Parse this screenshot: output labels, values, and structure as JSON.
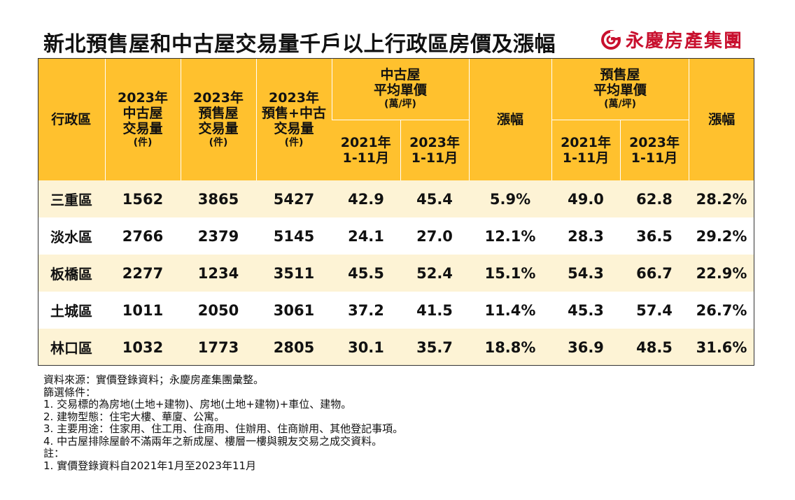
{
  "title": "新北預售屋和中古屋交易量千戶以上行政區房價及漲幅",
  "brand": {
    "name": "永慶房產集團",
    "color": "#c8102e"
  },
  "colors": {
    "header_bg": "#ffc12e",
    "row_alt": "#fdf3d5"
  },
  "chart_data": {
    "type": "table",
    "headers": {
      "district": "行政區",
      "col_2023_used": [
        "2023年",
        "中古屋",
        "交易量"
      ],
      "col_2023_presale": [
        "2023年",
        "預售屋",
        "交易量"
      ],
      "col_2023_total": [
        "2023年",
        "預售+中古",
        "交易量"
      ],
      "unit_count": "(件)",
      "group_used_price": [
        "中古屋",
        "平均單價"
      ],
      "group_presale_price": [
        "預售屋",
        "平均單價"
      ],
      "unit_price": "(萬/坪)",
      "period_2021": [
        "2021年",
        "1-11月"
      ],
      "period_2023": [
        "2023年",
        "1-11月"
      ],
      "growth": "漲幅"
    },
    "rows": [
      {
        "district": "三重區",
        "used_2023": "1562",
        "presale_2023": "3865",
        "total_2023": "5427",
        "used_2021_price": "42.9",
        "used_2023_price": "45.4",
        "used_growth": "5.9%",
        "presale_2021_price": "49.0",
        "presale_2023_price": "62.8",
        "presale_growth": "28.2%"
      },
      {
        "district": "淡水區",
        "used_2023": "2766",
        "presale_2023": "2379",
        "total_2023": "5145",
        "used_2021_price": "24.1",
        "used_2023_price": "27.0",
        "used_growth": "12.1%",
        "presale_2021_price": "28.3",
        "presale_2023_price": "36.5",
        "presale_growth": "29.2%"
      },
      {
        "district": "板橋區",
        "used_2023": "2277",
        "presale_2023": "1234",
        "total_2023": "3511",
        "used_2021_price": "45.5",
        "used_2023_price": "52.4",
        "used_growth": "15.1%",
        "presale_2021_price": "54.3",
        "presale_2023_price": "66.7",
        "presale_growth": "22.9%"
      },
      {
        "district": "土城區",
        "used_2023": "1011",
        "presale_2023": "2050",
        "total_2023": "3061",
        "used_2021_price": "37.2",
        "used_2023_price": "41.5",
        "used_growth": "11.4%",
        "presale_2021_price": "45.3",
        "presale_2023_price": "57.4",
        "presale_growth": "26.7%"
      },
      {
        "district": "林口區",
        "used_2023": "1032",
        "presale_2023": "1773",
        "total_2023": "2805",
        "used_2021_price": "30.1",
        "used_2023_price": "35.7",
        "used_growth": "18.8%",
        "presale_2021_price": "36.9",
        "presale_2023_price": "48.5",
        "presale_growth": "31.6%"
      }
    ]
  },
  "notes": [
    "資料來源：實價登錄資料；永慶房產集團彙整。",
    "篩選條件：",
    "1. 交易標的為房地(土地+建物)、房地(土地+建物)+車位、建物。",
    "2. 建物型態：住宅大樓、華廈、公寓。",
    "3. 主要用途：住家用、住工用、住商用、住辦用、住商辦用、其他登記事項。",
    "4. 中古屋排除屋齡不滿兩年之新成屋、樓層一樓與親友交易之成交資料。",
    "註：",
    "1. 實價登錄資料自2021年1月至2023年11月"
  ]
}
